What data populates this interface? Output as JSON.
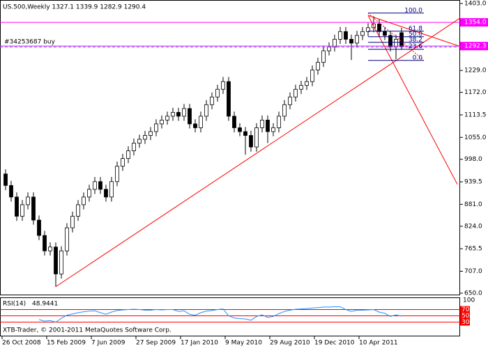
{
  "chart_data": {
    "type": "candlestick",
    "title": "US.500,Weekly  1327.1 1339.9 1282.9 1290.4",
    "footer": "XTB-Trader, © 2001-2011 MetaQuotes Software Corp.",
    "categories": [
      "26 Oct 2008",
      null,
      null,
      null,
      null,
      null,
      null,
      null,
      "15 Feb 2009",
      null,
      null,
      null,
      null,
      null,
      null,
      null,
      "7 Jun 2009",
      null,
      null,
      null,
      null,
      null,
      null,
      null,
      "27 Sep 2009",
      null,
      null,
      null,
      null,
      null,
      null,
      null,
      "17 Jan 2010",
      null,
      null,
      null,
      null,
      null,
      null,
      null,
      "9 May 2010",
      null,
      null,
      null,
      null,
      null,
      null,
      null,
      "29 Aug 2010",
      null,
      null,
      null,
      null,
      null,
      null,
      null,
      "19 Dec 2010",
      null,
      null,
      null,
      null,
      null,
      null,
      null,
      "10 Apr 2011",
      null,
      null,
      null,
      null,
      null,
      null,
      null
    ],
    "open": [
      960,
      930,
      900,
      850,
      880,
      900,
      840,
      800,
      760,
      770,
      700,
      760,
      820,
      850,
      880,
      900,
      920,
      940,
      920,
      900,
      940,
      980,
      1000,
      1020,
      1040,
      1050,
      1060,
      1070,
      1090,
      1100,
      1110,
      1120,
      1110,
      1130,
      1090,
      1080,
      1110,
      1140,
      1160,
      1180,
      1200,
      1110,
      1080,
      1070,
      1060,
      1030,
      1080,
      1100,
      1070,
      1080,
      1110,
      1140,
      1160,
      1180,
      1190,
      1200,
      1230,
      1250,
      1280,
      1290,
      1310,
      1330,
      1310,
      1300,
      1320,
      1330,
      1340,
      1350,
      1330,
      1320,
      1290,
      1327.1
    ],
    "high": [
      972,
      942,
      912,
      892,
      912,
      912,
      852,
      812,
      782,
      782,
      772,
      832,
      862,
      892,
      912,
      932,
      952,
      952,
      932,
      952,
      992,
      1012,
      1032,
      1052,
      1062,
      1072,
      1082,
      1102,
      1112,
      1122,
      1132,
      1132,
      1142,
      1142,
      1102,
      1122,
      1152,
      1172,
      1192,
      1212,
      1212,
      1122,
      1092,
      1082,
      1072,
      1092,
      1112,
      1112,
      1092,
      1122,
      1152,
      1172,
      1192,
      1202,
      1212,
      1242,
      1262,
      1292,
      1302,
      1322,
      1342,
      1342,
      1322,
      1332,
      1342,
      1352,
      1370,
      1362,
      1342,
      1332,
      1322,
      1339.9
    ],
    "low": [
      918,
      888,
      838,
      838,
      868,
      828,
      788,
      748,
      748,
      667,
      688,
      748,
      808,
      838,
      868,
      888,
      908,
      908,
      888,
      888,
      928,
      968,
      988,
      1008,
      1028,
      1038,
      1048,
      1058,
      1078,
      1088,
      1098,
      1098,
      1098,
      1078,
      1068,
      1068,
      1098,
      1128,
      1148,
      1168,
      1098,
      1068,
      1058,
      1010,
      1018,
      1018,
      1068,
      1040,
      1058,
      1068,
      1098,
      1128,
      1148,
      1168,
      1178,
      1188,
      1218,
      1238,
      1268,
      1278,
      1298,
      1298,
      1256,
      1288,
      1308,
      1318,
      1328,
      1318,
      1308,
      1278,
      1258,
      1282.9
    ],
    "close": [
      930,
      900,
      850,
      880,
      900,
      840,
      800,
      760,
      770,
      700,
      760,
      820,
      850,
      880,
      900,
      920,
      940,
      920,
      900,
      940,
      980,
      1000,
      1020,
      1040,
      1050,
      1060,
      1070,
      1090,
      1100,
      1110,
      1120,
      1110,
      1130,
      1090,
      1080,
      1110,
      1140,
      1160,
      1180,
      1200,
      1110,
      1080,
      1070,
      1060,
      1030,
      1080,
      1100,
      1070,
      1080,
      1110,
      1140,
      1160,
      1180,
      1190,
      1200,
      1230,
      1250,
      1280,
      1290,
      1310,
      1330,
      1310,
      1300,
      1320,
      1330,
      1340,
      1350,
      1330,
      1320,
      1290,
      1310,
      1290.4
    ],
    "up_color": "#ffffff",
    "down_color": "#000000",
    "outline_color": "#000000",
    "ylim": [
      650,
      1403
    ],
    "yticks": [
      {
        "value": 650,
        "label": "650.0"
      },
      {
        "value": 707,
        "label": "707.0"
      },
      {
        "value": 765.5,
        "label": "765.5"
      },
      {
        "value": 824,
        "label": "824.0"
      },
      {
        "value": 881,
        "label": "881.0"
      },
      {
        "value": 939.5,
        "label": "939.5"
      },
      {
        "value": 998,
        "label": "998.0"
      },
      {
        "value": 1055,
        "label": "1055.0"
      },
      {
        "value": 1113.5,
        "label": "1113.5"
      },
      {
        "value": 1172,
        "label": "1172.0"
      },
      {
        "value": 1229,
        "label": "1229.0"
      },
      {
        "value": 1403,
        "label": "1403.0"
      }
    ],
    "hlines": [
      {
        "value": 1354,
        "label": "1354.0",
        "color": "#ff00ff"
      },
      {
        "value": 1292.3,
        "label": "1292.3",
        "color": "#ff00ff",
        "order": "#34253687 buy"
      }
    ],
    "trendlines": [
      {
        "x": [
          9,
          82
        ],
        "y": [
          667,
          1370
        ],
        "color": "#ff0000"
      },
      {
        "x": [
          65,
          82
        ],
        "y": [
          1372,
          1289
        ],
        "color": "#ff0000"
      },
      {
        "x": [
          65,
          81
        ],
        "y": [
          1372,
          933
        ],
        "color": "#ff0000"
      }
    ],
    "fibo": {
      "x": [
        65,
        75
      ],
      "high": 1378,
      "low": 1255,
      "color": "#000080",
      "levels": [
        {
          "value": 100,
          "label": "100.0"
        },
        {
          "value": 61.8,
          "label": "61.8"
        },
        {
          "value": 50,
          "label": "50.0"
        },
        {
          "value": 38.2,
          "label": "38.2"
        },
        {
          "value": 23.6,
          "label": "23.6"
        },
        {
          "value": 0,
          "label": "0.0"
        }
      ]
    },
    "rsi": {
      "title": "RSI(14)",
      "color": "#1e90ff",
      "level_color": "#ff0000",
      "ylim": [
        0,
        100
      ],
      "yticks": [
        100
      ],
      "levels": [
        70,
        50,
        30
      ],
      "values": [
        null,
        null,
        null,
        null,
        null,
        null,
        38,
        33,
        35,
        30,
        42,
        52,
        56,
        60,
        63,
        65,
        66,
        60,
        55,
        62,
        67,
        69,
        70,
        71,
        70,
        68,
        68,
        70,
        69,
        70,
        70,
        64,
        66,
        55,
        52,
        60,
        65,
        67,
        70,
        72,
        50,
        43,
        41,
        40,
        36,
        48,
        53,
        45,
        48,
        57,
        64,
        68,
        71,
        72,
        73,
        75,
        76,
        78,
        78,
        79,
        79,
        70,
        64,
        68,
        68,
        69,
        70,
        62,
        58,
        48,
        53,
        48.9441
      ]
    }
  }
}
